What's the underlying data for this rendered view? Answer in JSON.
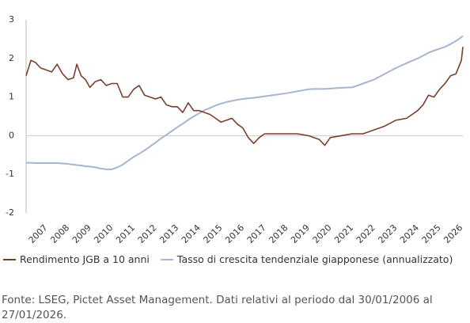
{
  "chart_data": {
    "type": "line",
    "x": [
      2006.08,
      2006.3,
      2006.5,
      2006.75,
      2007.0,
      2007.25,
      2007.5,
      2007.75,
      2008.0,
      2008.25,
      2008.4,
      2008.6,
      2008.8,
      2009.0,
      2009.25,
      2009.5,
      2009.75,
      2010.0,
      2010.25,
      2010.5,
      2010.75,
      2011.0,
      2011.25,
      2011.5,
      2011.75,
      2012.0,
      2012.25,
      2012.5,
      2012.75,
      2013.0,
      2013.25,
      2013.5,
      2013.75,
      2014.0,
      2014.25,
      2014.5,
      2014.75,
      2015.0,
      2015.25,
      2015.5,
      2015.75,
      2016.0,
      2016.25,
      2016.5,
      2016.75,
      2017.0,
      2017.5,
      2018.0,
      2018.5,
      2019.0,
      2019.25,
      2019.5,
      2019.75,
      2020.0,
      2020.5,
      2021.0,
      2021.5,
      2022.0,
      2022.5,
      2023.0,
      2023.5,
      2024.0,
      2024.25,
      2024.5,
      2024.75,
      2025.0,
      2025.25,
      2025.5,
      2025.75,
      2026.0,
      2026.07
    ],
    "series": [
      {
        "name": "Rendimento JGB a 10 anni",
        "color": "#7b3f2e",
        "values": [
          1.55,
          1.95,
          1.9,
          1.75,
          1.7,
          1.65,
          1.85,
          1.6,
          1.45,
          1.5,
          1.85,
          1.55,
          1.45,
          1.25,
          1.4,
          1.45,
          1.3,
          1.35,
          1.35,
          1.0,
          1.0,
          1.2,
          1.3,
          1.05,
          1.0,
          0.95,
          1.0,
          0.8,
          0.75,
          0.75,
          0.6,
          0.85,
          0.65,
          0.65,
          0.6,
          0.55,
          0.45,
          0.35,
          0.4,
          0.45,
          0.3,
          0.2,
          -0.05,
          -0.2,
          -0.05,
          0.05,
          0.05,
          0.05,
          0.05,
          0.0,
          -0.05,
          -0.1,
          -0.25,
          -0.05,
          0.0,
          0.05,
          0.05,
          0.15,
          0.25,
          0.4,
          0.45,
          0.65,
          0.8,
          1.05,
          1.0,
          1.2,
          1.35,
          1.55,
          1.6,
          1.95,
          2.3
        ]
      },
      {
        "name": "Tasso di crescita tendenziale giapponese (annualizzato)",
        "color": "#a7b6cf",
        "values": [
          -0.7,
          -0.7,
          -0.71,
          -0.71,
          -0.71,
          -0.71,
          -0.71,
          -0.72,
          -0.73,
          -0.75,
          -0.76,
          -0.77,
          -0.79,
          -0.8,
          -0.82,
          -0.85,
          -0.87,
          -0.87,
          -0.82,
          -0.75,
          -0.65,
          -0.55,
          -0.47,
          -0.38,
          -0.28,
          -0.18,
          -0.07,
          0.02,
          0.12,
          0.22,
          0.31,
          0.41,
          0.5,
          0.58,
          0.66,
          0.72,
          0.78,
          0.83,
          0.87,
          0.9,
          0.93,
          0.95,
          0.97,
          0.98,
          1.0,
          1.02,
          1.06,
          1.1,
          1.15,
          1.2,
          1.21,
          1.21,
          1.21,
          1.22,
          1.24,
          1.25,
          1.35,
          1.45,
          1.6,
          1.75,
          1.88,
          2.0,
          2.07,
          2.15,
          2.2,
          2.25,
          2.3,
          2.37,
          2.45,
          2.55,
          2.58
        ]
      }
    ],
    "xlim": [
      2006.08,
      2026.07
    ],
    "xticks": [
      2007,
      2008,
      2009,
      2010,
      2011,
      2012,
      2013,
      2014,
      2015,
      2016,
      2017,
      2018,
      2019,
      2020,
      2021,
      2022,
      2023,
      2024,
      2025,
      2026
    ],
    "ylim": [
      -2,
      3
    ],
    "yticks": [
      3,
      2,
      1,
      0,
      -1,
      -2
    ],
    "source": "Fonte: LSEG, Pictet Asset Management. Dati relativi al periodo dal 30/01/2006 al 27/01/2026."
  }
}
